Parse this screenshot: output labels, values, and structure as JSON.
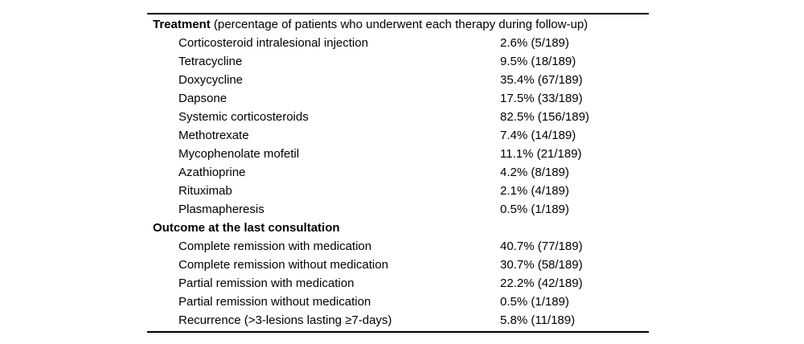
{
  "table": {
    "sections": [
      {
        "header_bold": "Treatment",
        "header_rest": " (percentage of patients who underwent each therapy during follow-up)",
        "rows": [
          {
            "label": "Corticosteroid intralesional injection",
            "value": "2.6% (5/189)"
          },
          {
            "label": "Tetracycline",
            "value": "9.5% (18/189)"
          },
          {
            "label": "Doxycycline",
            "value": "35.4% (67/189)"
          },
          {
            "label": "Dapsone",
            "value": "17.5% (33/189)"
          },
          {
            "label": "Systemic corticosteroids",
            "value": "82.5% (156/189)"
          },
          {
            "label": "Methotrexate",
            "value": "7.4% (14/189)"
          },
          {
            "label": "Mycophenolate mofetil",
            "value": "11.1% (21/189)"
          },
          {
            "label": "Azathioprine",
            "value": "4.2% (8/189)"
          },
          {
            "label": "Rituximab",
            "value": "2.1% (4/189)"
          },
          {
            "label": "Plasmapheresis",
            "value": "0.5% (1/189)"
          }
        ]
      },
      {
        "header_bold": "Outcome at the last consultation",
        "header_rest": "",
        "rows": [
          {
            "label": "Complete remission with medication",
            "value": "40.7% (77/189)"
          },
          {
            "label": "Complete remission without medication",
            "value": "30.7% (58/189)"
          },
          {
            "label": "Partial remission with medication",
            "value": "22.2% (42/189)"
          },
          {
            "label": "Partial remission without medication",
            "value": "0.5% (1/189)"
          },
          {
            "label": "Recurrence (>3-lesions lasting ≥7-days)",
            "value": "5.8% (11/189)"
          }
        ]
      }
    ],
    "colors": {
      "text": "#000000",
      "rule": "#000000",
      "background": "#ffffff"
    }
  }
}
